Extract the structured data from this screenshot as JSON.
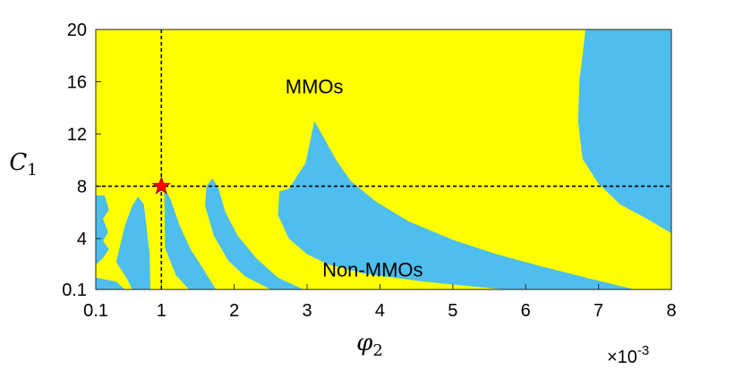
{
  "chart_data": {
    "type": "heatmap",
    "title": "",
    "x_axis": {
      "label_main": "φ",
      "label_sub": "2",
      "range": [
        0.1,
        8
      ],
      "ticks": [
        0.1,
        1,
        2,
        3,
        4,
        5,
        6,
        7,
        8
      ],
      "tick_labels": [
        "0.1",
        "1",
        "2",
        "3",
        "4",
        "5",
        "6",
        "7",
        "8"
      ],
      "multiplier_prefix": "×10",
      "multiplier_exp": "-3"
    },
    "y_axis": {
      "label_main": "C",
      "label_sub": "1",
      "range": [
        0.1,
        20
      ],
      "ticks": [
        0.1,
        4,
        8,
        12,
        16,
        20
      ],
      "tick_labels": [
        "0.1",
        "4",
        "8",
        "12",
        "16",
        "20"
      ]
    },
    "colors": {
      "mmo": "#ffff00",
      "non_mmo": "#4dbeee",
      "marker": "#ff0000"
    },
    "labels": {
      "mmo": {
        "text": "MMOs",
        "x": 3.1,
        "y": 15.5
      },
      "non_mmo": {
        "text": "Non-MMOs",
        "x": 3.9,
        "y": 1.5
      }
    },
    "reference_lines": {
      "x": 1,
      "y": 8
    },
    "marker": {
      "x": 1,
      "y": 8,
      "shape": "star"
    },
    "non_mmo_regions": [
      [
        [
          0.1,
          7.3
        ],
        [
          0.22,
          7.3
        ],
        [
          0.28,
          6.2
        ],
        [
          0.2,
          5.5
        ],
        [
          0.27,
          4.5
        ],
        [
          0.2,
          3.8
        ],
        [
          0.28,
          3.2
        ],
        [
          0.2,
          2.5
        ],
        [
          0.1,
          2.0
        ]
      ],
      [
        [
          0.1,
          0.1
        ],
        [
          0.5,
          0.1
        ],
        [
          0.38,
          0.7
        ],
        [
          0.1,
          1.0
        ]
      ],
      [
        [
          0.5,
          5.0
        ],
        [
          0.6,
          6.5
        ],
        [
          0.68,
          7.2
        ],
        [
          0.76,
          6.6
        ],
        [
          0.84,
          2.8
        ],
        [
          0.85,
          0.1
        ],
        [
          0.6,
          0.1
        ],
        [
          0.52,
          1.0
        ],
        [
          0.38,
          2.2
        ]
      ],
      [
        [
          1.04,
          7.8
        ],
        [
          1.12,
          7.1
        ],
        [
          1.25,
          5.0
        ],
        [
          1.4,
          3.2
        ],
        [
          1.56,
          1.8
        ],
        [
          1.75,
          0.1
        ],
        [
          1.38,
          0.1
        ],
        [
          1.2,
          1.2
        ],
        [
          1.05,
          3.3
        ]
      ],
      [
        [
          1.62,
          8.0
        ],
        [
          1.7,
          8.6
        ],
        [
          1.78,
          7.9
        ],
        [
          1.88,
          6.0
        ],
        [
          2.05,
          4.2
        ],
        [
          2.3,
          2.5
        ],
        [
          2.6,
          1.0
        ],
        [
          2.95,
          0.1
        ],
        [
          2.5,
          0.1
        ],
        [
          2.15,
          1.1
        ],
        [
          1.92,
          2.3
        ],
        [
          1.72,
          4.2
        ],
        [
          1.6,
          6.5
        ]
      ],
      [
        [
          2.62,
          7.6
        ],
        [
          2.75,
          7.8
        ],
        [
          2.98,
          9.8
        ],
        [
          3.1,
          13.0
        ],
        [
          3.25,
          11.5
        ],
        [
          3.4,
          10.0
        ],
        [
          3.6,
          8.4
        ],
        [
          3.95,
          6.8
        ],
        [
          4.4,
          5.3
        ],
        [
          5.0,
          3.9
        ],
        [
          5.6,
          2.8
        ],
        [
          6.2,
          1.9
        ],
        [
          6.9,
          0.9
        ],
        [
          7.5,
          0.1
        ],
        [
          5.7,
          0.1
        ],
        [
          4.6,
          0.7
        ],
        [
          3.8,
          1.3
        ],
        [
          3.3,
          2.0
        ],
        [
          3.0,
          2.8
        ],
        [
          2.75,
          4.0
        ],
        [
          2.6,
          5.8
        ]
      ],
      [
        [
          6.82,
          20
        ],
        [
          8.0,
          20
        ],
        [
          8.0,
          4.4
        ],
        [
          7.7,
          5.4
        ],
        [
          7.3,
          6.6
        ],
        [
          7.0,
          8.2
        ],
        [
          6.78,
          10.1
        ],
        [
          6.72,
          13.0
        ],
        [
          6.74,
          16.2
        ],
        [
          6.78,
          18.0
        ]
      ]
    ]
  }
}
